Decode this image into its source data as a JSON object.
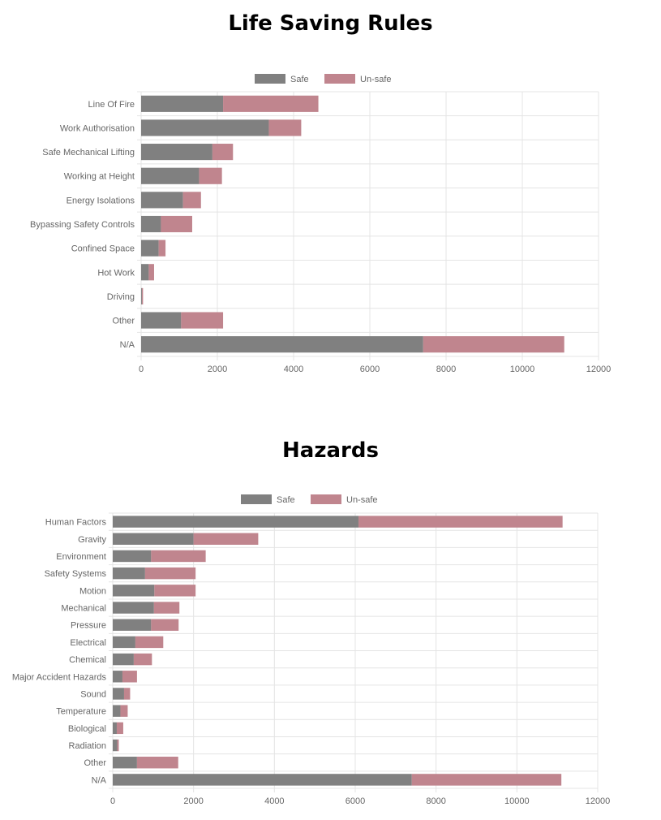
{
  "chart_data": [
    {
      "type": "bar",
      "orientation": "horizontal",
      "stacked": true,
      "title": "Life Saving Rules",
      "categories": [
        "Line Of Fire",
        "Work Authorisation",
        "Safe Mechanical Lifting",
        "Working at Height",
        "Energy Isolations",
        "Bypassing Safety Controls",
        "Confined Space",
        "Hot Work",
        "Driving",
        "Other",
        "N/A"
      ],
      "series": [
        {
          "name": "Safe",
          "color": "#808080",
          "values": [
            2150,
            3350,
            1870,
            1520,
            1100,
            520,
            460,
            200,
            20,
            1050,
            7400
          ]
        },
        {
          "name": "Un-safe",
          "color": "#c0858e",
          "values": [
            2500,
            850,
            540,
            600,
            470,
            820,
            180,
            140,
            30,
            1100,
            3700
          ]
        }
      ],
      "xlim": [
        0,
        12000
      ],
      "xticks": [
        "0",
        "2000",
        "4000",
        "6000",
        "8000",
        "10000",
        "12000"
      ],
      "legend_position": "top-center",
      "grid": true
    },
    {
      "type": "bar",
      "orientation": "horizontal",
      "stacked": true,
      "title": "Hazards",
      "categories": [
        "Human Factors",
        "Gravity",
        "Environment",
        "Safety Systems",
        "Motion",
        "Mechanical",
        "Pressure",
        "Electrical",
        "Chemical",
        "Major Accident Hazards",
        "Sound",
        "Temperature",
        "Biological",
        "Radiation",
        "Other",
        "N/A"
      ],
      "series": [
        {
          "name": "Safe",
          "color": "#808080",
          "values": [
            6080,
            2000,
            950,
            800,
            1030,
            1020,
            950,
            560,
            520,
            240,
            280,
            190,
            100,
            110,
            600,
            7400
          ]
        },
        {
          "name": "Un-safe",
          "color": "#c0858e",
          "values": [
            5050,
            1600,
            1350,
            1250,
            1020,
            630,
            680,
            690,
            450,
            360,
            150,
            180,
            160,
            40,
            1020,
            3700
          ]
        }
      ],
      "xlim": [
        0,
        12000
      ],
      "xticks": [
        "0",
        "2000",
        "4000",
        "6000",
        "8000",
        "10000",
        "12000"
      ],
      "legend_position": "top-center",
      "grid": true
    }
  ]
}
